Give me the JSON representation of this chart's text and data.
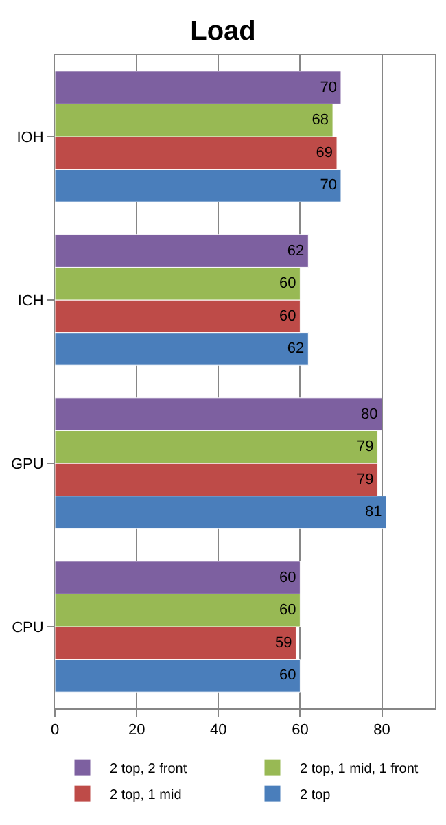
{
  "chart_data": {
    "type": "bar",
    "orientation": "horizontal",
    "title": "Load",
    "categories": [
      "IOH",
      "ICH",
      "GPU",
      "CPU"
    ],
    "series": [
      {
        "name": "2 top",
        "color": "#4a7ebb",
        "values": [
          70,
          62,
          81,
          60
        ]
      },
      {
        "name": "2 top, 1 mid",
        "color": "#be4b48",
        "values": [
          69,
          60,
          79,
          59
        ]
      },
      {
        "name": "2 top, 1 mid, 1 front",
        "color": "#98b954",
        "values": [
          68,
          60,
          79,
          60
        ]
      },
      {
        "name": "2 top, 2 front",
        "color": "#7d60a0",
        "values": [
          70,
          62,
          80,
          60
        ]
      }
    ],
    "xlim": [
      0,
      93
    ],
    "xticks": [
      0,
      20,
      40,
      60,
      80
    ],
    "grid": "x",
    "legend": "bottom",
    "data_labels": true
  }
}
